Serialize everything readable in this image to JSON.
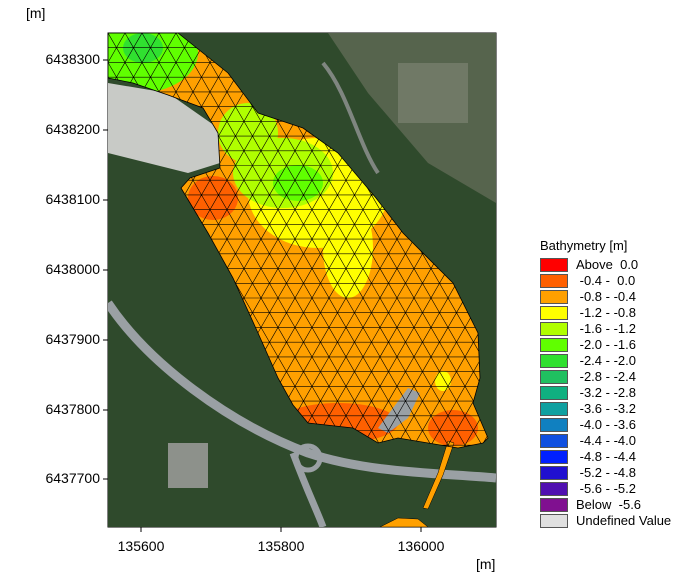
{
  "units": {
    "top_label": "[m]",
    "bottom_label": "[m]"
  },
  "y_axis": {
    "ticks": [
      "6438300",
      "6438200",
      "6438100",
      "6438000",
      "6437900",
      "6437800",
      "6437700"
    ],
    "tick_values": [
      6438300,
      6438200,
      6438100,
      6438000,
      6437900,
      6437800,
      6437700
    ]
  },
  "x_axis": {
    "ticks": [
      "135600",
      "135800",
      "136000"
    ],
    "tick_values": [
      135600,
      135800,
      136000
    ]
  },
  "legend": {
    "title": "Bathymetry [m]",
    "items": [
      {
        "label": "Above  0.0",
        "color": "#ff0000"
      },
      {
        "label": " -0.4 -  0.0",
        "color": "#ff6000"
      },
      {
        "label": " -0.8 - -0.4",
        "color": "#ffa000"
      },
      {
        "label": " -1.2 - -0.8",
        "color": "#ffff00"
      },
      {
        "label": " -1.6 - -1.2",
        "color": "#b0ff00"
      },
      {
        "label": " -2.0 - -1.6",
        "color": "#60ff00"
      },
      {
        "label": " -2.4 - -2.0",
        "color": "#30e030"
      },
      {
        "label": " -2.8 - -2.4",
        "color": "#20c060"
      },
      {
        "label": " -3.2 - -2.8",
        "color": "#10b080"
      },
      {
        "label": " -3.6 - -3.2",
        "color": "#10a0a0"
      },
      {
        "label": " -4.0 - -3.6",
        "color": "#1080c0"
      },
      {
        "label": " -4.4 - -4.0",
        "color": "#1050e0"
      },
      {
        "label": " -4.8 - -4.4",
        "color": "#0020ff"
      },
      {
        "label": " -5.2 - -4.8",
        "color": "#2010d0"
      },
      {
        "label": " -5.6 - -5.2",
        "color": "#5010b0"
      },
      {
        "label": "Below  -5.6",
        "color": "#801090"
      },
      {
        "label": "Undefined Value",
        "color": "#e0e0e0"
      }
    ]
  },
  "colors": {
    "forest": "#2f4a2c",
    "road": "#9aa0a4",
    "urban": "#c8cac6",
    "mesh_line": "#000000"
  }
}
